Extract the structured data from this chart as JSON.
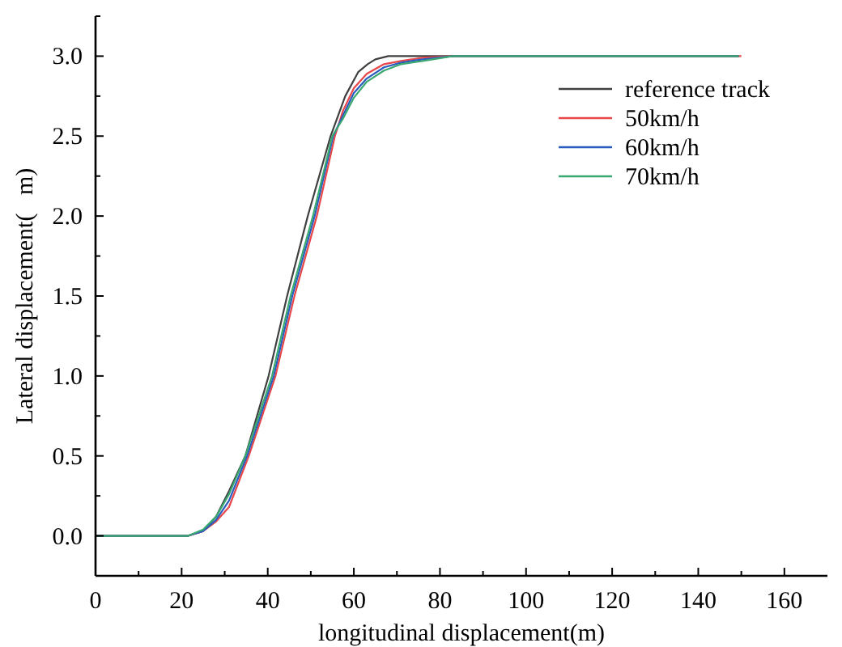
{
  "chart_data": {
    "type": "line",
    "xlabel": "longitudinal displacement(m)",
    "ylabel": "Lateral displacement(   m)",
    "xlim": [
      0,
      170
    ],
    "xticks": [
      0,
      {
        "value": 10,
        "label": null
      },
      20,
      {
        "value": 30,
        "label": null
      },
      40,
      {
        "value": 50,
        "label": null
      },
      60,
      {
        "value": 70,
        "label": null
      },
      80,
      {
        "value": 90,
        "label": null
      },
      100,
      {
        "value": 110,
        "label": null
      },
      120,
      {
        "value": 130,
        "label": null
      },
      140,
      {
        "value": 150,
        "label": null
      },
      160
    ],
    "ylim": [
      -0.25,
      3.25
    ],
    "yticks": [
      {
        "value": -0.25,
        "label": null
      },
      "0.0",
      {
        "value": 0.25,
        "label": null
      },
      0.5,
      {
        "value": 0.75,
        "label": null
      },
      "1.0",
      {
        "value": 1.25,
        "label": null
      },
      1.5,
      {
        "value": 1.75,
        "label": null
      },
      "2.0",
      {
        "value": 2.25,
        "label": null
      },
      2.5,
      {
        "value": 2.75,
        "label": null
      },
      "3.0",
      {
        "value": 3.25,
        "label": null
      }
    ],
    "legend": "top right",
    "grid": false,
    "marker": "none",
    "line_style": "solid",
    "series": [
      {
        "name": "reference track",
        "color": "#404040",
        "x": [
          0,
          21.5,
          25,
          28,
          31,
          34.8,
          37.5,
          40.2,
          44.5,
          49.3,
          54.6,
          58,
          61,
          63.2,
          65,
          68,
          149.4
        ],
        "values": [
          0,
          0,
          0.03,
          0.12,
          0.28,
          0.5,
          0.75,
          1.0,
          1.5,
          2.0,
          2.5,
          2.75,
          2.9,
          2.95,
          2.98,
          3.0,
          3.0
        ]
      },
      {
        "name": "50km/h",
        "color": "#e8474a",
        "x": [
          0,
          21.5,
          25,
          28,
          31,
          35.6,
          38.7,
          41.8,
          46.2,
          51.4,
          55.6,
          57.5,
          60,
          63,
          67,
          71,
          76,
          83,
          150
        ],
        "values": [
          0,
          0,
          0.03,
          0.09,
          0.18,
          0.5,
          0.75,
          1.0,
          1.5,
          2.0,
          2.5,
          2.66,
          2.8,
          2.89,
          2.95,
          2.97,
          2.99,
          3.0,
          3.0
        ]
      },
      {
        "name": "60km/h",
        "color": "#2a5cc0",
        "x": [
          0,
          21.5,
          25,
          28,
          31,
          35.2,
          38.3,
          41.4,
          45.7,
          50.9,
          55.2,
          57.5,
          60,
          63,
          67,
          71,
          76,
          83,
          149.4
        ],
        "values": [
          0,
          0,
          0.03,
          0.1,
          0.22,
          0.5,
          0.75,
          1.0,
          1.5,
          2.0,
          2.5,
          2.63,
          2.77,
          2.86,
          2.93,
          2.96,
          2.98,
          3.0,
          3.0
        ]
      },
      {
        "name": "70km/h",
        "color": "#3aa870",
        "x": [
          0,
          21.5,
          25,
          28,
          31,
          34.8,
          37.9,
          41,
          45.3,
          50.5,
          55,
          57.5,
          60,
          63,
          67,
          71,
          76,
          83,
          149.4
        ],
        "values": [
          0,
          0,
          0.04,
          0.12,
          0.26,
          0.5,
          0.75,
          1.0,
          1.5,
          2.0,
          2.5,
          2.61,
          2.74,
          2.84,
          2.91,
          2.95,
          2.97,
          3.0,
          3.0
        ]
      }
    ]
  }
}
